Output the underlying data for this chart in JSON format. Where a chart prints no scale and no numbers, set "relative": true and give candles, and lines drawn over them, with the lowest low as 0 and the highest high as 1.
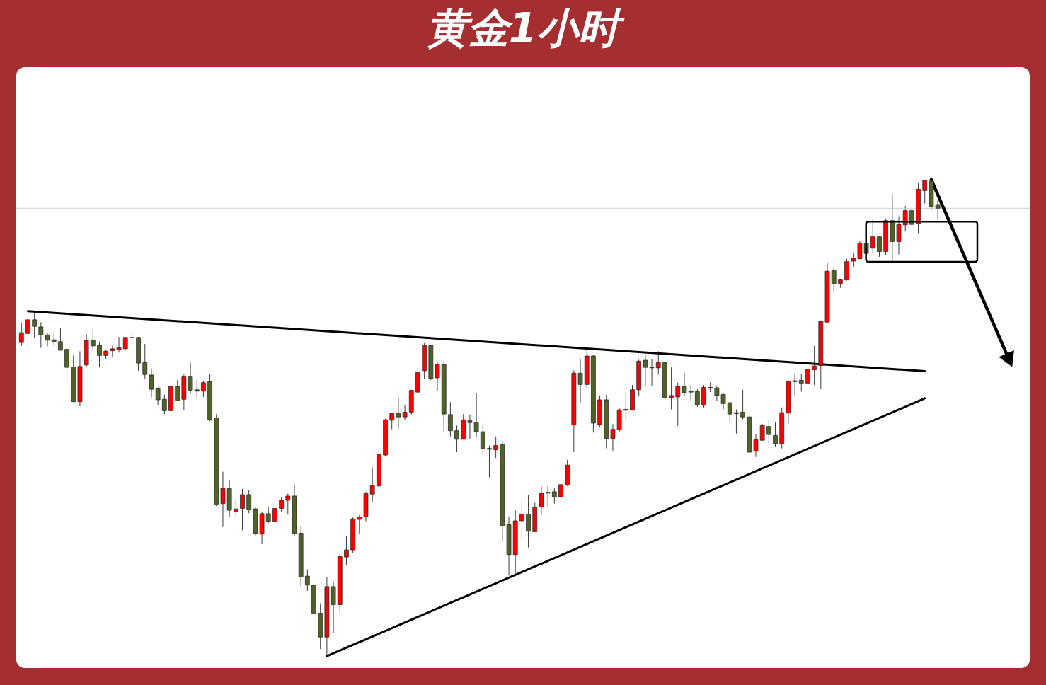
{
  "chart_data": {
    "type": "candlestick",
    "title": "黄金1小时",
    "relative": true,
    "categories": [
      null,
      null,
      null,
      null,
      null,
      null,
      null,
      null,
      null,
      null,
      null,
      null,
      null,
      null,
      null,
      null,
      null,
      null,
      null,
      null,
      null,
      null,
      null,
      null,
      null,
      null,
      null,
      null,
      null,
      null,
      null,
      null,
      null,
      null,
      null,
      null,
      null,
      null,
      null,
      null,
      null,
      null,
      null,
      null,
      null,
      null,
      null,
      null,
      null,
      null,
      null,
      null,
      null,
      null,
      null,
      null,
      null,
      null,
      null,
      null,
      null,
      null,
      null,
      null,
      null,
      null,
      null,
      null,
      null,
      null,
      null,
      null,
      null,
      null,
      null,
      null,
      null,
      null,
      null,
      null,
      null,
      null,
      null,
      null,
      null,
      null,
      null,
      null,
      null,
      null,
      null,
      null,
      null,
      null,
      null,
      null,
      null,
      null,
      null,
      null,
      null,
      null,
      null,
      null,
      null,
      null,
      null,
      null,
      null,
      null,
      null,
      null,
      null,
      null,
      null,
      null,
      null,
      null,
      null,
      null,
      null,
      null,
      null,
      null,
      null,
      null,
      null,
      null,
      null,
      null,
      null,
      null,
      null,
      null,
      null,
      null,
      null,
      null,
      null,
      null,
      null,
      null,
      null,
      null,
      null,
      null,
      null,
      null,
      null,
      null,
      null,
      null,
      null,
      null
    ],
    "ohlc": [
      [
        0.658,
        0.699,
        0.651,
        0.679
      ],
      [
        0.677,
        0.724,
        0.632,
        0.706
      ],
      [
        0.706,
        0.72,
        0.668,
        0.692
      ],
      [
        0.691,
        0.701,
        0.647,
        0.674
      ],
      [
        0.674,
        0.679,
        0.65,
        0.663
      ],
      [
        0.664,
        0.677,
        0.652,
        0.66
      ],
      [
        0.66,
        0.689,
        0.641,
        0.642
      ],
      [
        0.644,
        0.647,
        0.582,
        0.606
      ],
      [
        0.607,
        0.631,
        0.533,
        0.534
      ],
      [
        0.534,
        0.64,
        0.524,
        0.608
      ],
      [
        0.611,
        0.676,
        0.606,
        0.663
      ],
      [
        0.663,
        0.686,
        0.641,
        0.651
      ],
      [
        0.652,
        0.66,
        0.606,
        0.631
      ],
      [
        0.631,
        0.642,
        0.624,
        0.64
      ],
      [
        0.641,
        0.651,
        0.627,
        0.645
      ],
      [
        0.643,
        0.67,
        0.637,
        0.647
      ],
      [
        0.645,
        0.669,
        0.644,
        0.669
      ],
      [
        0.669,
        0.682,
        0.664,
        0.668
      ],
      [
        0.669,
        0.67,
        0.599,
        0.615
      ],
      [
        0.616,
        0.655,
        0.582,
        0.591
      ],
      [
        0.59,
        0.604,
        0.543,
        0.56
      ],
      [
        0.561,
        0.564,
        0.527,
        0.538
      ],
      [
        0.539,
        0.549,
        0.508,
        0.515
      ],
      [
        0.515,
        0.567,
        0.505,
        0.566
      ],
      [
        0.566,
        0.579,
        0.535,
        0.536
      ],
      [
        0.539,
        0.591,
        0.517,
        0.586
      ],
      [
        0.586,
        0.616,
        0.55,
        0.558
      ],
      [
        0.559,
        0.579,
        0.541,
        0.556
      ],
      [
        0.556,
        0.578,
        0.544,
        0.574
      ],
      [
        0.576,
        0.593,
        0.493,
        0.496
      ],
      [
        0.5,
        0.508,
        0.315,
        0.319
      ],
      [
        0.32,
        0.387,
        0.271,
        0.352
      ],
      [
        0.352,
        0.368,
        0.292,
        0.306
      ],
      [
        0.304,
        0.329,
        0.292,
        0.309
      ],
      [
        0.31,
        0.351,
        0.264,
        0.339
      ],
      [
        0.339,
        0.348,
        0.3,
        0.307
      ],
      [
        0.309,
        0.312,
        0.253,
        0.257
      ],
      [
        0.256,
        0.303,
        0.235,
        0.299
      ],
      [
        0.299,
        0.312,
        0.279,
        0.283
      ],
      [
        0.283,
        0.317,
        0.279,
        0.31
      ],
      [
        0.31,
        0.333,
        0.302,
        0.327
      ],
      [
        0.327,
        0.341,
        0.297,
        0.336
      ],
      [
        0.336,
        0.36,
        0.252,
        0.257
      ],
      [
        0.258,
        0.274,
        0.146,
        0.166
      ],
      [
        0.168,
        0.182,
        0.137,
        0.149
      ],
      [
        0.149,
        0.159,
        0.074,
        0.09
      ],
      [
        0.09,
        0.111,
        0.015,
        0.04
      ],
      [
        0.04,
        0.166,
        0,
        0.146
      ],
      [
        0.146,
        0.155,
        0.048,
        0.108
      ],
      [
        0.108,
        0.216,
        0.091,
        0.209
      ],
      [
        0.208,
        0.253,
        0.192,
        0.223
      ],
      [
        0.223,
        0.291,
        0.216,
        0.288
      ],
      [
        0.287,
        0.296,
        0.257,
        0.292
      ],
      [
        0.292,
        0.345,
        0.283,
        0.341
      ],
      [
        0.34,
        0.394,
        0.323,
        0.358
      ],
      [
        0.357,
        0.432,
        0.348,
        0.423
      ],
      [
        0.422,
        0.498,
        0.419,
        0.496
      ],
      [
        0.495,
        0.511,
        0.476,
        0.509
      ],
      [
        0.509,
        0.542,
        0.477,
        0.502
      ],
      [
        0.502,
        0.527,
        0.495,
        0.512
      ],
      [
        0.512,
        0.559,
        0.507,
        0.558
      ],
      [
        0.554,
        0.599,
        0.55,
        0.595
      ],
      [
        0.599,
        0.657,
        0.581,
        0.652
      ],
      [
        0.652,
        0.653,
        0.579,
        0.582
      ],
      [
        0.584,
        0.616,
        0.556,
        0.612
      ],
      [
        0.612,
        0.619,
        0.47,
        0.508
      ],
      [
        0.507,
        0.533,
        0.461,
        0.473
      ],
      [
        0.473,
        0.484,
        0.428,
        0.455
      ],
      [
        0.455,
        0.508,
        0.455,
        0.496
      ],
      [
        0.494,
        0.507,
        0.456,
        0.49
      ],
      [
        0.491,
        0.552,
        0.461,
        0.471
      ],
      [
        0.471,
        0.486,
        0.423,
        0.435
      ],
      [
        0.436,
        0.442,
        0.375,
        0.434
      ],
      [
        0.433,
        0.461,
        0.416,
        0.442
      ],
      [
        0.444,
        0.452,
        0.241,
        0.273
      ],
      [
        0.276,
        0.293,
        0.169,
        0.213
      ],
      [
        0.213,
        0.306,
        0.174,
        0.284
      ],
      [
        0.284,
        0.33,
        0.243,
        0.298
      ],
      [
        0.298,
        0.339,
        0.228,
        0.262
      ],
      [
        0.261,
        0.322,
        0.261,
        0.313
      ],
      [
        0.313,
        0.356,
        0.298,
        0.342
      ],
      [
        0.344,
        0.357,
        0.313,
        0.342
      ],
      [
        0.345,
        0.352,
        0.32,
        0.334
      ],
      [
        0.334,
        0.376,
        0.334,
        0.36
      ],
      [
        0.359,
        0.412,
        0.357,
        0.401
      ],
      [
        0.485,
        0.6,
        0.428,
        0.594
      ],
      [
        0.594,
        0.623,
        0.53,
        0.57
      ],
      [
        0.57,
        0.642,
        0.563,
        0.63
      ],
      [
        0.63,
        0.632,
        0.469,
        0.489
      ],
      [
        0.486,
        0.547,
        0.481,
        0.538
      ],
      [
        0.538,
        0.548,
        0.436,
        0.457
      ],
      [
        0.457,
        0.487,
        0.431,
        0.476
      ],
      [
        0.475,
        0.52,
        0.47,
        0.517
      ],
      [
        0.518,
        0.554,
        0.496,
        0.516
      ],
      [
        0.516,
        0.569,
        0.516,
        0.559
      ],
      [
        0.559,
        0.622,
        0.547,
        0.619
      ],
      [
        0.621,
        0.633,
        0.565,
        0.606
      ],
      [
        0.606,
        0.623,
        0.567,
        0.605
      ],
      [
        0.605,
        0.64,
        0.591,
        0.616
      ],
      [
        0.616,
        0.618,
        0.539,
        0.542
      ],
      [
        0.543,
        0.606,
        0.518,
        0.547
      ],
      [
        0.544,
        0.574,
        0.483,
        0.566
      ],
      [
        0.566,
        0.595,
        0.546,
        0.553
      ],
      [
        0.556,
        0.569,
        0.537,
        0.554
      ],
      [
        0.555,
        0.56,
        0.523,
        0.527
      ],
      [
        0.527,
        0.569,
        0.522,
        0.564
      ],
      [
        0.564,
        0.575,
        0.554,
        0.562
      ],
      [
        0.563,
        0.566,
        0.536,
        0.547
      ],
      [
        0.549,
        0.553,
        0.518,
        0.53
      ],
      [
        0.532,
        0.533,
        0.491,
        0.508
      ],
      [
        0.511,
        0.518,
        0.467,
        0.509
      ],
      [
        0.512,
        0.559,
        0.497,
        0.502
      ],
      [
        0.502,
        0.503,
        0.427,
        0.428
      ],
      [
        0.43,
        0.466,
        0.418,
        0.454
      ],
      [
        0.453,
        0.487,
        0.452,
        0.484
      ],
      [
        0.482,
        0.496,
        0.446,
        0.465
      ],
      [
        0.463,
        0.492,
        0.439,
        0.446
      ],
      [
        0.446,
        0.522,
        0.436,
        0.511
      ],
      [
        0.51,
        0.579,
        0.488,
        0.576
      ],
      [
        0.578,
        0.593,
        0.547,
        0.576
      ],
      [
        0.579,
        0.593,
        0.555,
        0.573
      ],
      [
        0.573,
        0.606,
        0.571,
        0.602
      ],
      [
        0.601,
        0.651,
        0.569,
        0.609
      ],
      [
        0.61,
        0.704,
        0.56,
        0.703
      ],
      [
        0.701,
        0.825,
        0.699,
        0.808
      ],
      [
        0.809,
        0.815,
        0.763,
        0.782
      ],
      [
        0.782,
        0.792,
        0.773,
        0.791
      ],
      [
        0.79,
        0.834,
        0.788,
        0.828
      ],
      [
        0.829,
        0.846,
        0.817,
        0.835
      ],
      [
        0.834,
        0.871,
        0.833,
        0.867
      ],
      [
        0.866,
        0.874,
        0.843,
        0.845
      ],
      [
        0.856,
        0.917,
        0.845,
        0.88
      ],
      [
        0.88,
        0.881,
        0.838,
        0.849
      ],
      [
        0.849,
        0.917,
        0.842,
        0.914
      ],
      [
        0.914,
        0.97,
        0.824,
        0.87
      ],
      [
        0.87,
        0.923,
        0.843,
        0.906
      ],
      [
        0.905,
        0.945,
        0.891,
        0.935
      ],
      [
        0.935,
        0.939,
        0.903,
        0.906
      ],
      [
        0.907,
        0.994,
        0.888,
        0.98
      ],
      [
        0.977,
        1,
        0.95,
        0.999
      ],
      [
        0.997,
        0.998,
        0.936,
        0.944
      ],
      [
        0.948,
        0.957,
        0.916,
        0.94
      ],
      null,
      null,
      null,
      null,
      null,
      null,
      null,
      null,
      null,
      null,
      null,
      null
    ],
    "colors": [
      "#ff0000",
      "#ff0000",
      "#4f6228",
      "#4f6228",
      "#4f6228",
      "#4f6228",
      "#4f6228",
      "#4f6228",
      "#4f6228",
      "#ff0000",
      "#ff0000",
      "#4f6228",
      "#4f6228",
      "#ff0000",
      "#ff0000",
      "#ff0000",
      "#ff0000",
      "#4f6228",
      "#4f6228",
      "#4f6228",
      "#4f6228",
      "#4f6228",
      "#4f6228",
      "#ff0000",
      "#4f6228",
      "#ff0000",
      "#4f6228",
      "#4f6228",
      "#ff0000",
      "#4f6228",
      "#4f6228",
      "#ff0000",
      "#4f6228",
      "#ff0000",
      "#ff0000",
      "#4f6228",
      "#4f6228",
      "#ff0000",
      "#4f6228",
      "#ff0000",
      "#ff0000",
      "#ff0000",
      "#4f6228",
      "#4f6228",
      "#4f6228",
      "#4f6228",
      "#4f6228",
      "#ff0000",
      "#4f6228",
      "#ff0000",
      "#ff0000",
      "#ff0000",
      "#ff0000",
      "#ff0000",
      "#ff0000",
      "#ff0000",
      "#ff0000",
      "#ff0000",
      "#4f6228",
      "#ff0000",
      "#ff0000",
      "#ff0000",
      "#ff0000",
      "#4f6228",
      "#ff0000",
      "#4f6228",
      "#4f6228",
      "#4f6228",
      "#ff0000",
      "#4f6228",
      "#4f6228",
      "#4f6228",
      "#4f6228",
      "#ff0000",
      "#4f6228",
      "#4f6228",
      "#ff0000",
      "#ff0000",
      "#4f6228",
      "#ff0000",
      "#ff0000",
      "#4f6228",
      "#4f6228",
      "#ff0000",
      "#ff0000",
      "#ff0000",
      "#4f6228",
      "#ff0000",
      "#4f6228",
      "#ff0000",
      "#4f6228",
      "#ff0000",
      "#ff0000",
      "#4f6228",
      "#ff0000",
      "#ff0000",
      "#4f6228",
      "#4f6228",
      "#ff0000",
      "#4f6228",
      "#ff0000",
      "#ff0000",
      "#4f6228",
      "#4f6228",
      "#4f6228",
      "#ff0000",
      "#4f6228",
      "#4f6228",
      "#4f6228",
      "#4f6228",
      "#4f6228",
      "#4f6228",
      "#4f6228",
      "#ff0000",
      "#ff0000",
      "#4f6228",
      "#4f6228",
      "#ff0000",
      "#ff0000",
      "#4f6228",
      "#4f6228",
      "#ff0000",
      "#ff0000",
      "#ff0000",
      "#ff0000",
      "#4f6228",
      "#ff0000",
      "#ff0000",
      "#ff0000",
      "#ff0000",
      "#4f6228",
      "#ff0000",
      "#4f6228",
      "#ff0000",
      "#4f6228",
      "#ff0000",
      "#ff0000",
      "#4f6228",
      "#ff0000",
      "#ff0000",
      "#4f6228",
      "#4f6228",
      null,
      null,
      null,
      null,
      null,
      null,
      null,
      null,
      null,
      null,
      null,
      null
    ],
    "series": [
      {
        "type": "line",
        "color": "#000000",
        "values": [
          null,
          0.724,
          null,
          null,
          null,
          null,
          null,
          null,
          null,
          null,
          null,
          null,
          null,
          null,
          null,
          null,
          null,
          null,
          null,
          null,
          null,
          null,
          null,
          null,
          null,
          null,
          null,
          null,
          null,
          null,
          null,
          null,
          null,
          null,
          null,
          null,
          null,
          null,
          null,
          null,
          null,
          null,
          null,
          null,
          null,
          null,
          null,
          null,
          null,
          null,
          null,
          null,
          null,
          null,
          null,
          null,
          null,
          null,
          null,
          null,
          null,
          null,
          null,
          null,
          null,
          null,
          null,
          null,
          null,
          null,
          null,
          null,
          null,
          null,
          null,
          null,
          null,
          null,
          null,
          null,
          null,
          null,
          null,
          null,
          null,
          null,
          null,
          null,
          null,
          null,
          null,
          null,
          null,
          null,
          null,
          null,
          null,
          null,
          null,
          null,
          null,
          null,
          null,
          null,
          null,
          null,
          null,
          null,
          null,
          null,
          null,
          null,
          null,
          null,
          null,
          null,
          null,
          null,
          null,
          null,
          null,
          null,
          null,
          null,
          null,
          null,
          null,
          null,
          null,
          null,
          null,
          null,
          null,
          null,
          null,
          null,
          null,
          null,
          null,
          0.598,
          null,
          null,
          null,
          null,
          null,
          null,
          null,
          null,
          null,
          null,
          null,
          null,
          null,
          null
        ]
      },
      {
        "type": "line",
        "color": "#000000",
        "values": [
          null,
          null,
          null,
          null,
          null,
          null,
          null,
          null,
          null,
          null,
          null,
          null,
          null,
          null,
          null,
          null,
          null,
          null,
          null,
          null,
          null,
          null,
          null,
          null,
          null,
          null,
          null,
          null,
          null,
          null,
          null,
          null,
          null,
          null,
          null,
          null,
          null,
          null,
          null,
          null,
          null,
          null,
          null,
          null,
          null,
          null,
          null,
          0,
          null,
          null,
          null,
          null,
          null,
          null,
          null,
          null,
          null,
          null,
          null,
          null,
          null,
          null,
          null,
          null,
          null,
          null,
          null,
          null,
          null,
          null,
          null,
          null,
          null,
          null,
          null,
          null,
          null,
          null,
          null,
          null,
          null,
          null,
          null,
          null,
          null,
          null,
          null,
          null,
          null,
          null,
          null,
          null,
          null,
          null,
          null,
          null,
          null,
          null,
          null,
          null,
          null,
          null,
          null,
          null,
          null,
          null,
          null,
          null,
          null,
          null,
          null,
          null,
          null,
          null,
          null,
          null,
          null,
          null,
          null,
          null,
          null,
          null,
          null,
          null,
          null,
          null,
          null,
          null,
          null,
          null,
          null,
          null,
          null,
          null,
          null,
          null,
          null,
          null,
          null,
          0.541,
          null,
          null,
          null,
          null,
          null,
          null,
          null,
          null,
          null,
          null,
          null,
          null,
          null,
          null
        ]
      },
      {
        "type": "line",
        "color": "#000000",
        "marker": "triangle",
        "values": [
          null,
          null,
          null,
          null,
          null,
          null,
          null,
          null,
          null,
          null,
          null,
          null,
          null,
          null,
          null,
          null,
          null,
          null,
          null,
          null,
          null,
          null,
          null,
          null,
          null,
          null,
          null,
          null,
          null,
          null,
          null,
          null,
          null,
          null,
          null,
          null,
          null,
          null,
          null,
          null,
          null,
          null,
          null,
          null,
          null,
          null,
          null,
          null,
          null,
          null,
          null,
          null,
          null,
          null,
          null,
          null,
          null,
          null,
          null,
          null,
          null,
          null,
          null,
          null,
          null,
          null,
          null,
          null,
          null,
          null,
          null,
          null,
          null,
          null,
          null,
          null,
          null,
          null,
          null,
          null,
          null,
          null,
          null,
          null,
          null,
          null,
          null,
          null,
          null,
          null,
          null,
          null,
          null,
          null,
          null,
          null,
          null,
          null,
          null,
          null,
          null,
          null,
          null,
          null,
          null,
          null,
          null,
          null,
          null,
          null,
          null,
          null,
          null,
          null,
          null,
          null,
          null,
          null,
          null,
          null,
          null,
          null,
          null,
          null,
          null,
          null,
          null,
          null,
          null,
          null,
          null,
          null,
          null,
          null,
          null,
          null,
          null,
          null,
          null,
          null,
          1,
          null,
          null,
          null,
          null,
          null,
          null,
          null,
          null,
          null,
          null,
          null,
          0.621,
          null
        ]
      }
    ],
    "ref_lines": [
      {
        "axis": "y",
        "value": 0.94,
        "color": "#cccccc"
      }
    ]
  }
}
